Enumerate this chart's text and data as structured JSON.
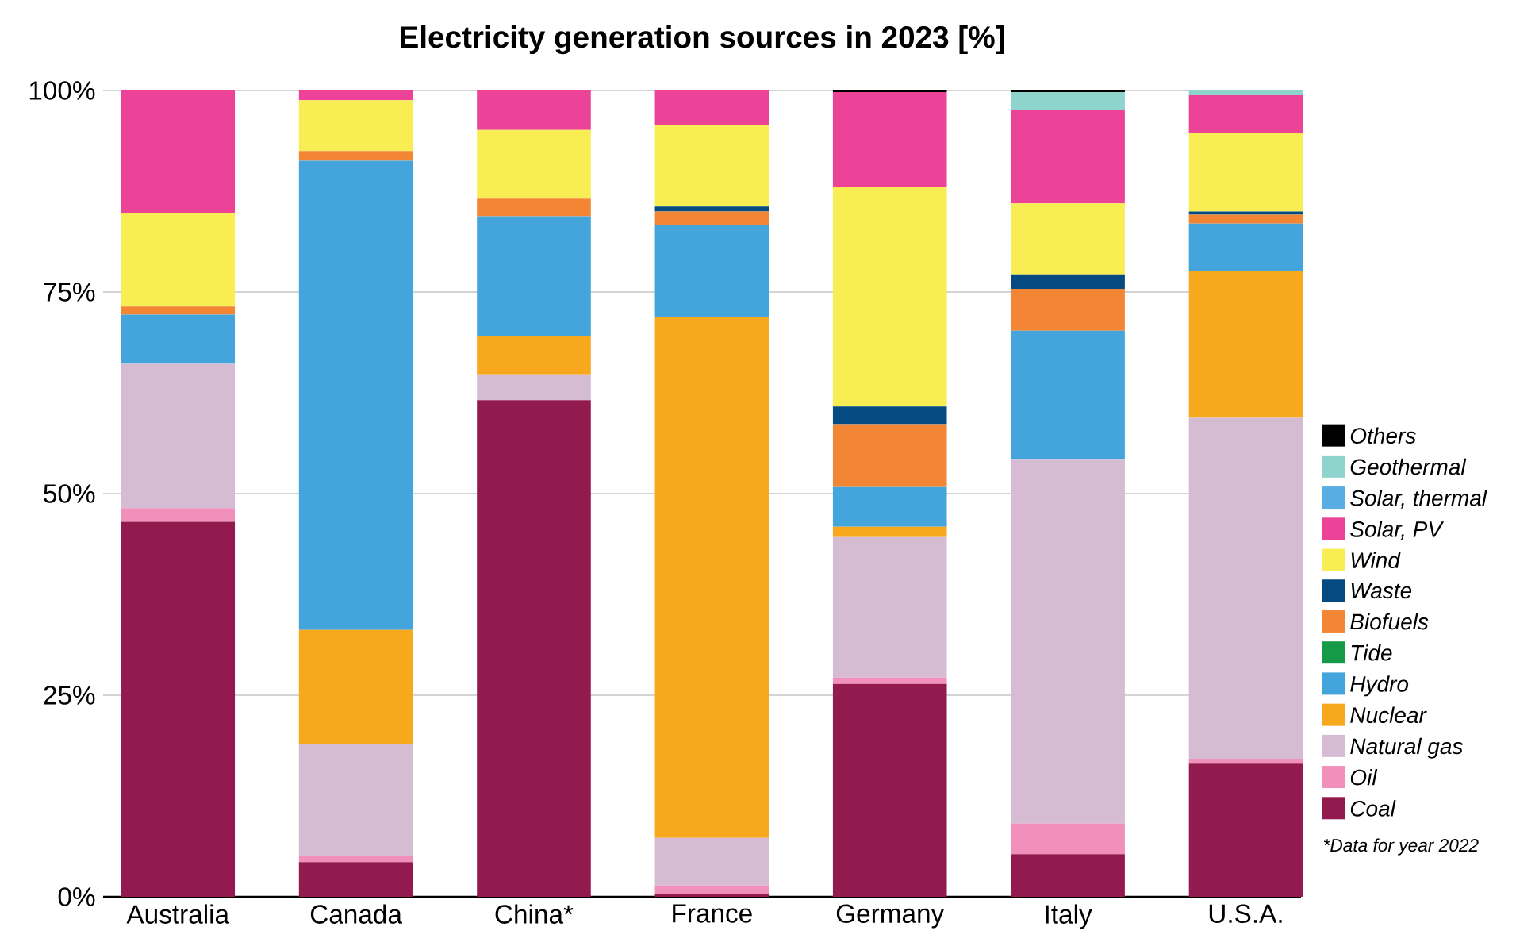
{
  "chart_data": {
    "type": "bar",
    "title": "Electricity generation sources in 2023 [%]",
    "stacked": true,
    "grid": "y",
    "legend": "right",
    "categories": [
      "Australia",
      "Canada",
      "China*",
      "France",
      "Germany",
      "Italy",
      "U.S.A."
    ],
    "ylim": [
      0,
      100
    ],
    "yticks": [
      {
        "value": 0,
        "label": "0%"
      },
      {
        "value": 25,
        "label": "25%"
      },
      {
        "value": 50,
        "label": "50%"
      },
      {
        "value": 75,
        "label": "75%"
      },
      {
        "value": 100,
        "label": "100%"
      }
    ],
    "series": [
      {
        "name": "Coal",
        "color": "#931a4f",
        "values": [
          46.5,
          4.3,
          61.6,
          0.4,
          26.4,
          5.3,
          16.5
        ]
      },
      {
        "name": "Oil",
        "color": "#f190bb",
        "values": [
          1.7,
          0.8,
          0,
          1.0,
          0.8,
          3.8,
          0.6
        ]
      },
      {
        "name": "Natural gas",
        "color": "#d5bcd2",
        "values": [
          17.9,
          13.8,
          3.2,
          5.9,
          17.4,
          45.2,
          42.3
        ]
      },
      {
        "name": "Nuclear",
        "color": "#f8a81d",
        "values": [
          0,
          14.2,
          4.7,
          64.6,
          1.3,
          0,
          18.2
        ]
      },
      {
        "name": "Hydro",
        "color": "#44a4dc",
        "values": [
          6.1,
          58.2,
          14.9,
          11.4,
          4.9,
          15.9,
          5.9
        ]
      },
      {
        "name": "Tide",
        "color": "#159a48",
        "values": [
          0,
          0,
          0,
          0,
          0,
          0,
          0
        ]
      },
      {
        "name": "Biofuels",
        "color": "#f38634",
        "values": [
          1.0,
          1.2,
          2.2,
          1.7,
          7.8,
          5.2,
          1.1
        ]
      },
      {
        "name": "Waste",
        "color": "#054b81",
        "values": [
          0,
          0,
          0,
          0.6,
          2.2,
          1.8,
          0.4
        ]
      },
      {
        "name": "Wind",
        "color": "#f8ee54",
        "values": [
          11.6,
          6.3,
          8.5,
          10.1,
          27.2,
          8.8,
          9.7
        ]
      },
      {
        "name": "Solar, PV",
        "color": "#ec4399",
        "values": [
          15.2,
          1.2,
          4.9,
          4.3,
          11.8,
          11.6,
          4.7
        ]
      },
      {
        "name": "Solar, thermal",
        "color": "#58aee3",
        "values": [
          0,
          0,
          0,
          0,
          0,
          0,
          0
        ]
      },
      {
        "name": "Geothermal",
        "color": "#8fd3cd",
        "values": [
          0,
          0,
          0,
          0,
          0,
          2.2,
          0.6
        ]
      },
      {
        "name": "Others",
        "color": "#000000",
        "values": [
          0,
          0,
          0,
          0,
          0.2,
          0.2,
          0
        ]
      }
    ],
    "annotations": [
      "*Data for year 2022"
    ]
  }
}
